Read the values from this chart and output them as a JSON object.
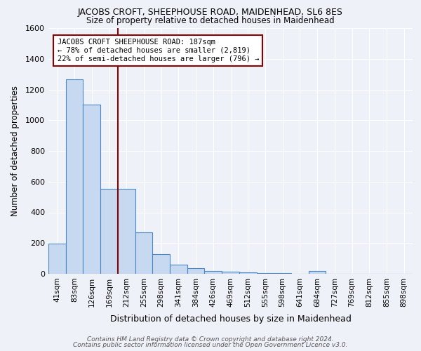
{
  "title1": "JACOBS CROFT, SHEEPHOUSE ROAD, MAIDENHEAD, SL6 8ES",
  "title2": "Size of property relative to detached houses in Maidenhead",
  "xlabel": "Distribution of detached houses by size in Maidenhead",
  "ylabel": "Number of detached properties",
  "categories": [
    "41sqm",
    "83sqm",
    "126sqm",
    "169sqm",
    "212sqm",
    "255sqm",
    "298sqm",
    "341sqm",
    "384sqm",
    "426sqm",
    "469sqm",
    "512sqm",
    "555sqm",
    "598sqm",
    "641sqm",
    "684sqm",
    "727sqm",
    "769sqm",
    "812sqm",
    "855sqm",
    "898sqm"
  ],
  "values": [
    195,
    1265,
    1100,
    555,
    555,
    270,
    130,
    60,
    35,
    20,
    15,
    10,
    5,
    5,
    0,
    20,
    0,
    0,
    0,
    0,
    0
  ],
  "bar_color": "#c6d9f0",
  "bar_edge_color": "#4a86c8",
  "bar_edge_width": 0.8,
  "vline_x": 3.5,
  "vline_color": "#8b0000",
  "annotation_text": "JACOBS CROFT SHEEPHOUSE ROAD: 187sqm\n← 78% of detached houses are smaller (2,819)\n22% of semi-detached houses are larger (796) →",
  "annotation_box_color": "white",
  "annotation_box_edge": "#8b0000",
  "ylim": [
    0,
    1600
  ],
  "yticks": [
    0,
    200,
    400,
    600,
    800,
    1000,
    1200,
    1400,
    1600
  ],
  "bg_color": "#eef2f8",
  "grid_color": "#ffffff",
  "footer1": "Contains HM Land Registry data © Crown copyright and database right 2024.",
  "footer2": "Contains public sector information licensed under the Open Government Licence v3.0."
}
